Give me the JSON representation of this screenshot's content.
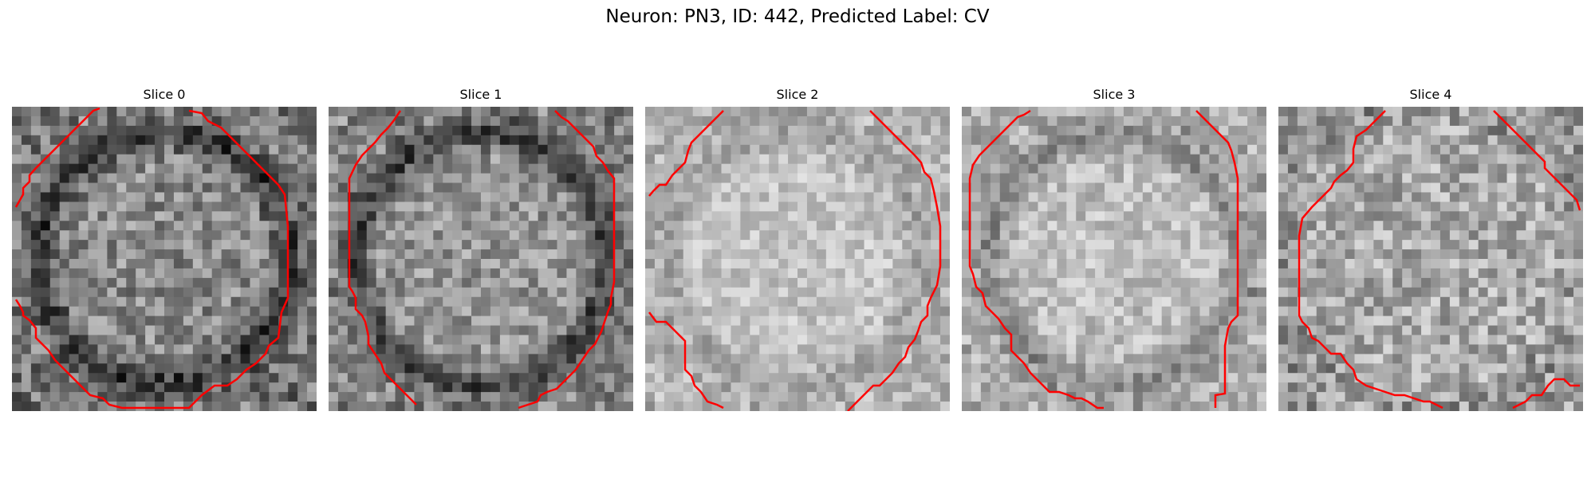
{
  "figure": {
    "title": "Neuron: PN3, ID: 442, Predicted Label: CV",
    "contour_color": "#ff0000",
    "panels": [
      {
        "label": "Slice 0",
        "base": 138,
        "noise": 52,
        "ring": "dark",
        "seed": 11
      },
      {
        "label": "Slice 1",
        "base": 150,
        "noise": 46,
        "ring": "dark",
        "seed": 23
      },
      {
        "label": "Slice 2",
        "base": 196,
        "noise": 32,
        "ring": "faint",
        "seed": 37
      },
      {
        "label": "Slice 3",
        "base": 190,
        "noise": 36,
        "ring": "medium",
        "seed": 41
      },
      {
        "label": "Slice 4",
        "base": 170,
        "noise": 50,
        "ring": "none",
        "seed": 59
      }
    ]
  }
}
